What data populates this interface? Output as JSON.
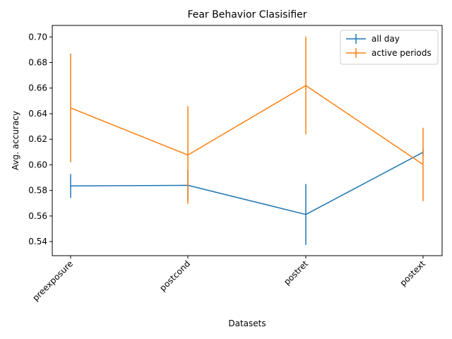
{
  "chart_data": {
    "type": "line",
    "title": "Fear Behavior Clasisifier",
    "xlabel": "Datasets",
    "ylabel": "Avg. accuracy",
    "categories": [
      "preexposure",
      "postcond",
      "postret",
      "postext"
    ],
    "ylim": [
      0.529,
      0.709
    ],
    "yticks": [
      "0.54",
      "0.56",
      "0.58",
      "0.60",
      "0.62",
      "0.64",
      "0.66",
      "0.68",
      "0.70"
    ],
    "grid": false,
    "legend_position": "top-right",
    "series": [
      {
        "name": "all day",
        "color": "#1f77b4",
        "values": [
          0.5835,
          0.584,
          0.5612,
          0.6098
        ],
        "errors": [
          0.0093,
          0.0122,
          0.0238,
          0.0028
        ]
      },
      {
        "name": "active periods",
        "color": "#ff7f0e",
        "values": [
          0.6445,
          0.6077,
          0.662,
          0.6003
        ],
        "errors": [
          0.0425,
          0.0382,
          0.0381,
          0.0287
        ]
      }
    ]
  }
}
